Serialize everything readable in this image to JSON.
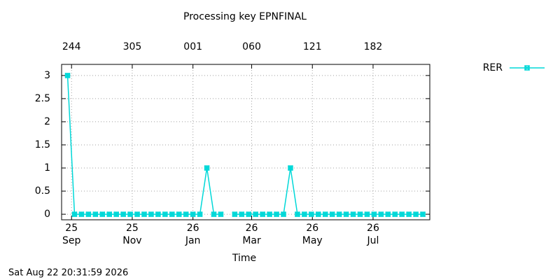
{
  "chart_data": {
    "type": "line",
    "title": "Processing key EPNFINAL",
    "x_label": "Time",
    "timestamp": "Sat Aug 22 20:31:59 2026",
    "xlim": [
      -10,
      360
    ],
    "ylim": [
      -0.12,
      3.24
    ],
    "xticks": [
      {
        "value": 0,
        "label": "25\nSep"
      },
      {
        "value": 61,
        "label": "25\nNov"
      },
      {
        "value": 122,
        "label": "26\nJan"
      },
      {
        "value": 181,
        "label": "26\nMar"
      },
      {
        "value": 242,
        "label": "26\nMay"
      },
      {
        "value": 303,
        "label": "26\nJul"
      }
    ],
    "x2ticks": [
      {
        "value": 0,
        "label": "244"
      },
      {
        "value": 61,
        "label": "305"
      },
      {
        "value": 122,
        "label": "001"
      },
      {
        "value": 181,
        "label": "060"
      },
      {
        "value": 242,
        "label": "121"
      },
      {
        "value": 303,
        "label": "182"
      }
    ],
    "yticks": [
      0,
      0.5,
      1,
      1.5,
      2,
      2.5,
      3
    ],
    "grid": true,
    "legend": "right",
    "x": [
      -4,
      3,
      10,
      17,
      24,
      31,
      38,
      45,
      52,
      59,
      66,
      73,
      80,
      87,
      94,
      101,
      108,
      115,
      122,
      129,
      136,
      143,
      150,
      157,
      164,
      171,
      178,
      185,
      192,
      199,
      206,
      213,
      220,
      227,
      234,
      241,
      248,
      255,
      262,
      269,
      276,
      283,
      290,
      297,
      304,
      311,
      318,
      325,
      332,
      339,
      346,
      353
    ],
    "series": [
      {
        "name": "RER",
        "color": "#00d8d8",
        "values": [
          3,
          0,
          0,
          0,
          0,
          0,
          0,
          0,
          0,
          0,
          0,
          0,
          0,
          0,
          0,
          0,
          0,
          0,
          0,
          0,
          1,
          0,
          0,
          null,
          0,
          0,
          0,
          0,
          0,
          0,
          0,
          0,
          1,
          0,
          0,
          0,
          0,
          0,
          0,
          0,
          0,
          0,
          0,
          0,
          0,
          0,
          0,
          0,
          0,
          0,
          0,
          0
        ]
      }
    ]
  }
}
